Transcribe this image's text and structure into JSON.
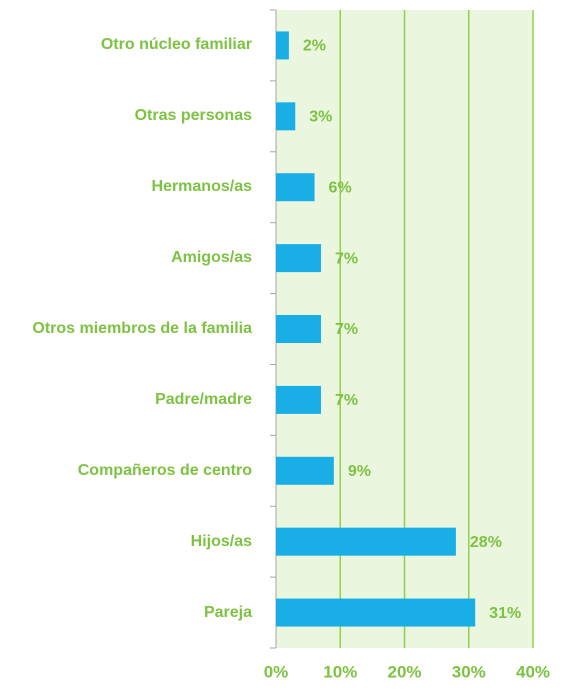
{
  "chart_data": {
    "type": "bar",
    "orientation": "horizontal",
    "categories": [
      "Otro núcleo familiar",
      "Otras personas",
      "Hermanos/as",
      "Amigos/as",
      "Otros miembros de la familia",
      "Padre/madre",
      "Compañeros de centro",
      "Hijos/as",
      "Pareja"
    ],
    "values": [
      2,
      3,
      6,
      7,
      7,
      7,
      9,
      28,
      31
    ],
    "value_labels": [
      "2%",
      "3%",
      "6%",
      "7%",
      "7%",
      "7%",
      "9%",
      "28%",
      "31%"
    ],
    "color": "#1aaee6",
    "xlim": [
      0,
      40
    ],
    "xticks": [
      {
        "value": 0,
        "label": "0%"
      },
      {
        "value": 10,
        "label": "10%"
      },
      {
        "value": 20,
        "label": "20%"
      },
      {
        "value": 30,
        "label": "30%"
      },
      {
        "value": 40,
        "label": "40%"
      }
    ],
    "grid": true
  }
}
